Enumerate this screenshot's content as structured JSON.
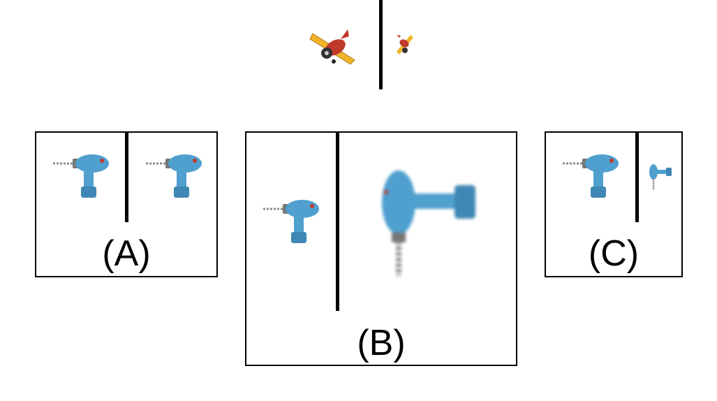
{
  "reference": {
    "left_icon": "toy-airplane-icon",
    "right_icon": "toy-airplane-icon-small-rotated"
  },
  "options": [
    {
      "label": "(A)",
      "left_icon": "toy-drill-icon",
      "right_icon": "toy-drill-icon"
    },
    {
      "label": "(B)",
      "left_icon": "toy-drill-icon",
      "right_icon": "toy-drill-icon-large-rotated-blurred"
    },
    {
      "label": "(C)",
      "left_icon": "toy-drill-icon",
      "right_icon": "toy-drill-icon-small-rotated"
    }
  ],
  "colors": {
    "drill_body": "#4f9fcf",
    "drill_bit": "#8a8a8a",
    "plane_wing": "#f0b429",
    "plane_body": "#c0392b",
    "outline": "#000000"
  }
}
